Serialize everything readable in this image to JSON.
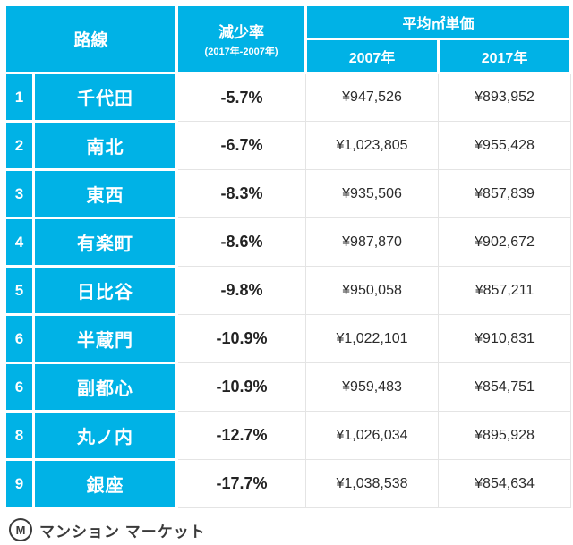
{
  "chart_data": {
    "type": "table",
    "header": {
      "line": "路線",
      "decrease": "減少率",
      "decrease_sub": "(2017年-2007年)",
      "price_group": "平均㎡単価",
      "year_2007": "2007年",
      "year_2017": "2017年"
    },
    "rows": [
      {
        "rank": "1",
        "line": "千代田",
        "decrease": "-5.7%",
        "price_2007": "¥947,526",
        "price_2017": "¥893,952"
      },
      {
        "rank": "2",
        "line": "南北",
        "decrease": "-6.7%",
        "price_2007": "¥1,023,805",
        "price_2017": "¥955,428"
      },
      {
        "rank": "3",
        "line": "東西",
        "decrease": "-8.3%",
        "price_2007": "¥935,506",
        "price_2017": "¥857,839"
      },
      {
        "rank": "4",
        "line": "有楽町",
        "decrease": "-8.6%",
        "price_2007": "¥987,870",
        "price_2017": "¥902,672"
      },
      {
        "rank": "5",
        "line": "日比谷",
        "decrease": "-9.8%",
        "price_2007": "¥950,058",
        "price_2017": "¥857,211"
      },
      {
        "rank": "6",
        "line": "半蔵門",
        "decrease": "-10.9%",
        "price_2007": "¥1,022,101",
        "price_2017": "¥910,831"
      },
      {
        "rank": "6",
        "line": "副都心",
        "decrease": "-10.9%",
        "price_2007": "¥959,483",
        "price_2017": "¥854,751"
      },
      {
        "rank": "8",
        "line": "丸ノ内",
        "decrease": "-12.7%",
        "price_2007": "¥1,026,034",
        "price_2017": "¥895,928"
      },
      {
        "rank": "9",
        "line": "銀座",
        "decrease": "-17.7%",
        "price_2007": "¥1,038,538",
        "price_2017": "¥854,634"
      }
    ]
  },
  "footer": {
    "brand": "マンション マーケット",
    "logo_letter": "M"
  },
  "colors": {
    "accent": "#00b2e6"
  }
}
